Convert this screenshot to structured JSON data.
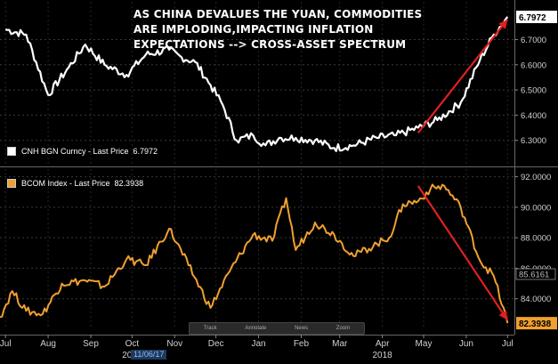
{
  "headline": [
    "AS CHINA DEVALUES THE YUAN, COMMODITIES",
    "ARE IMPLODING,IMPACTING INFLATION",
    "EXPECTATIONS --> CROSS-ASSET SPECTRUM"
  ],
  "toolbar": {
    "track": "Track",
    "annotate": "Annotate",
    "news": "News",
    "zoom": "Zoom"
  },
  "date_marker": "11/06/17",
  "colors": {
    "cnh": "#ffffff",
    "bcom": "#f0a030",
    "trend": "#e02020",
    "grid": "#3a3a3a",
    "axis_text": "#d0d0d0"
  },
  "chart_data": [
    {
      "type": "line",
      "legend": "CNH BGN Curncy - Last Price",
      "last_value_label": "6.7972",
      "last_value_tag": "6.7972",
      "ylim": [
        6.2,
        6.85
      ],
      "yticks": [
        6.3,
        6.4,
        6.5,
        6.6,
        6.7
      ],
      "ytick_labels": [
        "6.3000",
        "6.4000",
        "6.5000",
        "6.6000",
        "6.7000"
      ],
      "grid": true,
      "legend_placement": "bottom-left",
      "x": [
        "2016-07-05",
        "2016-07-20",
        "2016-08-05",
        "2016-08-20",
        "2016-09-01",
        "2016-09-15",
        "2016-10-01",
        "2016-10-15",
        "2016-11-01",
        "2016-11-10",
        "2016-11-20",
        "2016-12-01",
        "2016-12-10",
        "2016-12-20",
        "2017-01-01",
        "2017-01-10",
        "2017-01-20",
        "2017-02-01",
        "2017-02-15",
        "2017-03-01",
        "2017-03-15",
        "2017-04-01",
        "2017-04-15",
        "2017-05-01",
        "2017-05-15",
        "2017-06-01",
        "2017-06-15",
        "2017-06-25",
        "2017-07-05"
      ],
      "values": [
        6.74,
        6.72,
        6.48,
        6.59,
        6.68,
        6.6,
        6.56,
        6.64,
        6.66,
        6.63,
        6.61,
        6.52,
        6.44,
        6.3,
        6.32,
        6.28,
        6.31,
        6.31,
        6.3,
        6.27,
        6.28,
        6.31,
        6.32,
        6.35,
        6.38,
        6.45,
        6.62,
        6.72,
        6.79
      ],
      "trend_line": {
        "x": [
          "2017-05-01",
          "2017-07-05"
        ],
        "y": [
          6.33,
          6.78
        ]
      }
    },
    {
      "type": "line",
      "legend": "BCOM Index - Last Price",
      "last_value_label": "82.3938",
      "last_value_tag": "82.3938",
      "secondary_tag": "85.6161",
      "secondary_tag_value": 85.6161,
      "ylim": [
        82.0,
        92.5
      ],
      "yticks": [
        84,
        86,
        88,
        90,
        92
      ],
      "ytick_labels": [
        "84.0000",
        "86.0000",
        "88.0000",
        "90.0000",
        "92.0000"
      ],
      "grid": true,
      "legend_placement": "top-left",
      "x": [
        "2016-07-01",
        "2016-07-10",
        "2016-07-20",
        "2016-08-01",
        "2016-08-15",
        "2016-09-01",
        "2016-09-15",
        "2016-10-01",
        "2016-10-15",
        "2016-11-01",
        "2016-11-15",
        "2016-12-01",
        "2016-12-15",
        "2017-01-01",
        "2017-01-15",
        "2017-01-25",
        "2017-02-01",
        "2017-02-15",
        "2017-03-01",
        "2017-03-15",
        "2017-04-01",
        "2017-04-10",
        "2017-04-20",
        "2017-05-01",
        "2017-05-10",
        "2017-05-20",
        "2017-06-01",
        "2017-06-15",
        "2017-06-25",
        "2017-07-05"
      ],
      "values": [
        82.8,
        84.5,
        83.2,
        83.0,
        85.0,
        85.2,
        84.8,
        86.6,
        86.2,
        88.6,
        86.2,
        83.4,
        85.8,
        88.2,
        87.8,
        90.6,
        87.2,
        89.0,
        88.2,
        86.8,
        87.6,
        88.0,
        90.2,
        90.4,
        91.2,
        91.4,
        90.0,
        86.5,
        85.5,
        82.4
      ],
      "trend_line": {
        "x": [
          "2017-05-01",
          "2017-07-05"
        ],
        "y": [
          91.4,
          82.6
        ]
      }
    }
  ],
  "x_axis": {
    "ticks": [
      {
        "label": "Jul",
        "x": "2016-07-05"
      },
      {
        "label": "Aug",
        "x": "2016-08-05"
      },
      {
        "label": "Sep",
        "x": "2016-09-05"
      },
      {
        "label": "Oct",
        "x": "2016-10-05"
      },
      {
        "label": "Nov",
        "x": "2016-11-05"
      },
      {
        "label": "Dec",
        "x": "2016-12-05"
      },
      {
        "label": "Jan",
        "x": "2017-01-05"
      },
      {
        "label": "Feb",
        "x": "2017-02-05"
      },
      {
        "label": "Mar",
        "x": "2017-03-05"
      },
      {
        "label": "Apr",
        "x": "2017-04-05"
      },
      {
        "label": "May",
        "x": "2017-05-05"
      },
      {
        "label": "Jun",
        "x": "2017-06-05"
      },
      {
        "label": "Jul",
        "x": "2017-07-05"
      }
    ],
    "years": [
      {
        "label": "2017",
        "x": "2016-10-05"
      },
      {
        "label": "2018",
        "x": "2017-04-05"
      }
    ],
    "xlim": [
      "2016-07-01",
      "2017-07-10"
    ]
  }
}
